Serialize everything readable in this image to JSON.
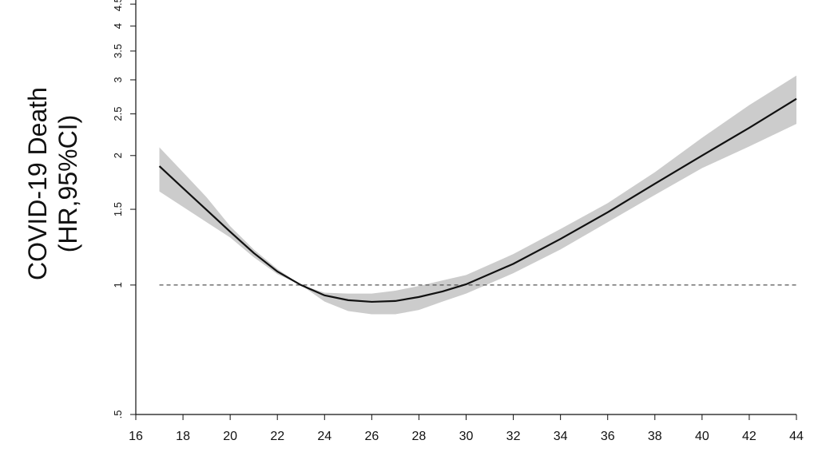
{
  "chart_data": {
    "type": "line",
    "y_label": [
      "COVID-19 Death",
      "(HR,95%CI)"
    ],
    "x": [
      17,
      18,
      19,
      20,
      21,
      22,
      23,
      24,
      25,
      26,
      27,
      28,
      29,
      30,
      32,
      34,
      36,
      38,
      40,
      42,
      44
    ],
    "values": [
      1.89,
      1.68,
      1.495,
      1.33,
      1.187,
      1.075,
      1.0,
      0.946,
      0.922,
      0.914,
      0.918,
      0.938,
      0.966,
      1.004,
      1.12,
      1.28,
      1.476,
      1.72,
      2.0,
      2.32,
      2.71
    ],
    "lower": [
      1.65,
      1.52,
      1.4,
      1.29,
      1.16,
      1.06,
      1.0,
      0.915,
      0.87,
      0.855,
      0.855,
      0.875,
      0.915,
      0.955,
      1.065,
      1.21,
      1.4,
      1.62,
      1.87,
      2.1,
      2.37
    ],
    "upper": [
      2.09,
      1.83,
      1.6,
      1.37,
      1.21,
      1.09,
      1.0,
      0.96,
      0.955,
      0.955,
      0.97,
      0.995,
      1.025,
      1.055,
      1.18,
      1.35,
      1.55,
      1.83,
      2.2,
      2.62,
      3.07
    ],
    "color": "#111111",
    "band_color": "#cccccc",
    "reference": 1,
    "xlim": [
      16,
      44
    ],
    "xticks": [
      16,
      18,
      20,
      22,
      24,
      26,
      28,
      30,
      32,
      34,
      36,
      38,
      40,
      42,
      44
    ],
    "ylim": [
      0.5,
      4.6
    ],
    "log_y": true,
    "yticks": [
      {
        "value": 0.5,
        "label": ".5"
      },
      1,
      1.5,
      2,
      2.5,
      3,
      3.5,
      4,
      4.5
    ]
  }
}
